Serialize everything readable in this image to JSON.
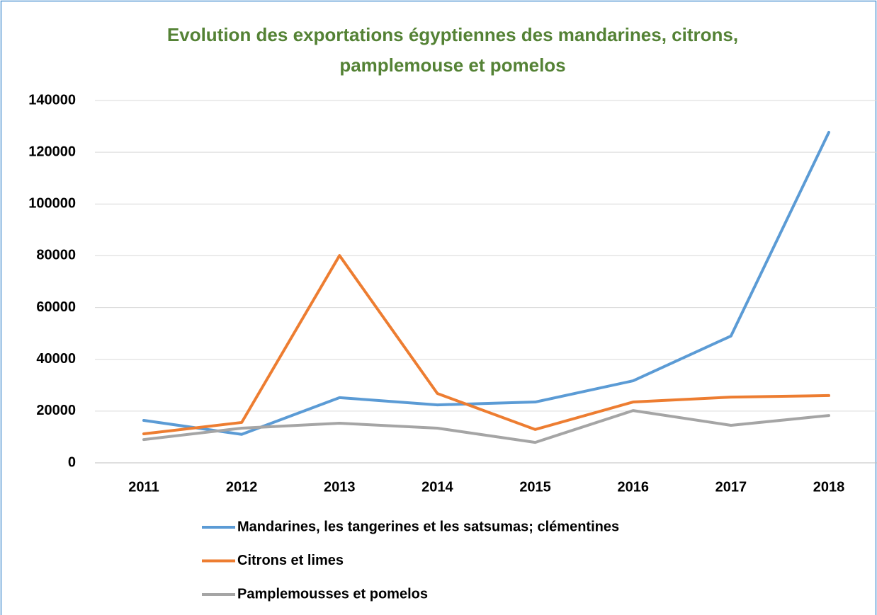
{
  "chart_data": {
    "type": "line",
    "title": "Evolution des exportations égyptiennes des mandarines, citrons, pamplemouse et pomelos",
    "categories": [
      "2011",
      "2012",
      "2013",
      "2014",
      "2015",
      "2016",
      "2017",
      "2018"
    ],
    "series": [
      {
        "name": "Mandarines, les tangerines et les satsumas; clémentines",
        "color": "#5b9bd5",
        "values": [
          16400,
          11000,
          25200,
          22400,
          23500,
          31700,
          49000,
          127700
        ]
      },
      {
        "name": "Citrons et limes",
        "color": "#ed7d31",
        "values": [
          11200,
          15600,
          80100,
          26800,
          12900,
          23500,
          25400,
          26000
        ]
      },
      {
        "name": "Pamplemousses et pomelos",
        "color": "#a5a5a5",
        "values": [
          9000,
          13400,
          15300,
          13400,
          7900,
          20200,
          14500,
          18300
        ]
      }
    ],
    "ylim": [
      0,
      140000
    ],
    "yticks": [
      0,
      20000,
      40000,
      60000,
      80000,
      100000,
      120000,
      140000
    ],
    "grid": true,
    "legend": "bottom"
  }
}
